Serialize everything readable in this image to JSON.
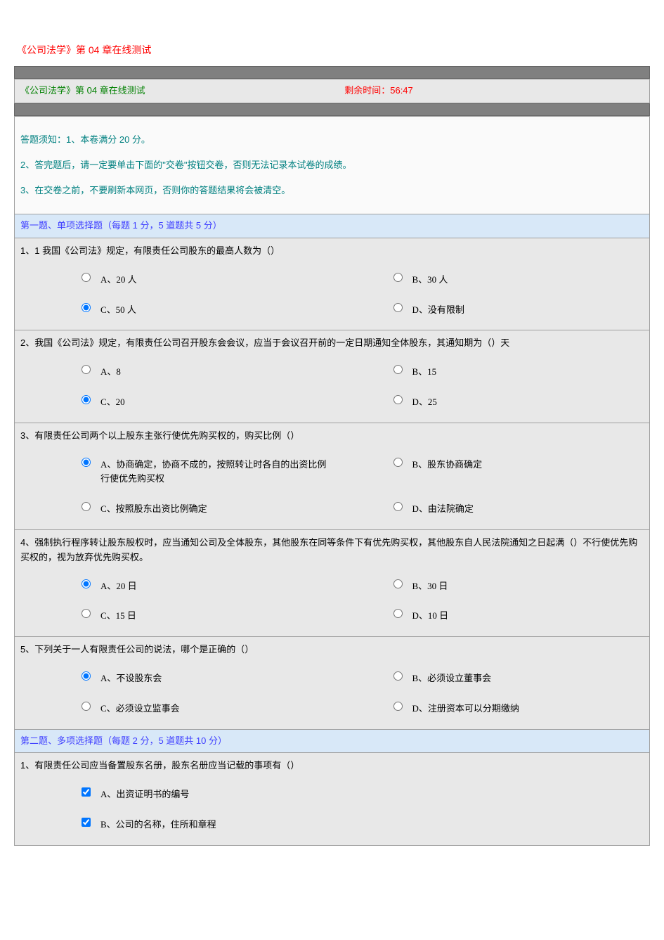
{
  "pageTitle": "《公司法学》第 04 章在线测试",
  "headerLeft": "《公司法学》第 04 章在线测试",
  "timerLabel": "剩余时间：56:47",
  "instructions": {
    "line1": "答题须知：1、本卷满分 20 分。",
    "line2": "2、答完题后，请一定要单击下面的\"交卷\"按钮交卷，否则无法记录本试卷的成绩。",
    "line3": "3、在交卷之前，不要刷新本网页，否则你的答题结果将会被清空。"
  },
  "section1": {
    "header": "第一题、单项选择题（每题 1 分，5 道题共 5 分）",
    "questions": [
      {
        "text": "1、1 我国《公司法》规定，有限责任公司股东的最高人数为（）",
        "options": {
          "a": "A、20 人",
          "b": "B、30 人",
          "c": "C、50 人",
          "d": "D、没有限制"
        },
        "selected": "c"
      },
      {
        "text": "2、我国《公司法》规定，有限责任公司召开股东会会议，应当于会议召开前的一定日期通知全体股东，其通知期为（）天",
        "options": {
          "a": "A、8",
          "b": "B、15",
          "c": "C、20",
          "d": "D、25"
        },
        "selected": "c"
      },
      {
        "text": "3、有限责任公司两个以上股东主张行使优先购买权的，购买比例（）",
        "options": {
          "a": "A、协商确定，协商不成的，按照转让时各自的出资比例行使优先购买权",
          "b": "B、股东协商确定",
          "c": "C、按照股东出资比例确定",
          "d": "D、由法院确定"
        },
        "selected": "a"
      },
      {
        "text": "4、强制执行程序转让股东股权时，应当通知公司及全体股东，其他股东在同等条件下有优先购买权，其他股东自人民法院通知之日起满（）不行使优先购买权的，视为放弃优先购买权。",
        "options": {
          "a": "A、20 日",
          "b": "B、30 日",
          "c": "C、15 日",
          "d": "D、10 日"
        },
        "selected": "a"
      },
      {
        "text": "5、下列关于一人有限责任公司的说法，哪个是正确的（）",
        "options": {
          "a": "A、不设股东会",
          "b": "B、必须设立董事会",
          "c": "C、必须设立监事会",
          "d": "D、注册资本可以分期缴纳"
        },
        "selected": "a"
      }
    ]
  },
  "section2": {
    "header": "第二题、多项选择题（每题 2 分，5 道题共 10 分）",
    "questions": [
      {
        "text": "1、有限责任公司应当备置股东名册，股东名册应当记载的事项有（）",
        "options": {
          "a": "A、出资证明书的编号",
          "b": "B、公司的名称，住所和章程"
        },
        "checked": [
          "a",
          "b"
        ]
      }
    ]
  },
  "colors": {
    "titleRed": "#ff0000",
    "headerGreen": "#008000",
    "instructionTeal": "#008080",
    "sectionBlue": "#4040ff",
    "sectionBg": "#d8e8f8",
    "grayBar": "#808080",
    "questionBg": "#e8e8e8",
    "border": "#a0a0a0"
  }
}
